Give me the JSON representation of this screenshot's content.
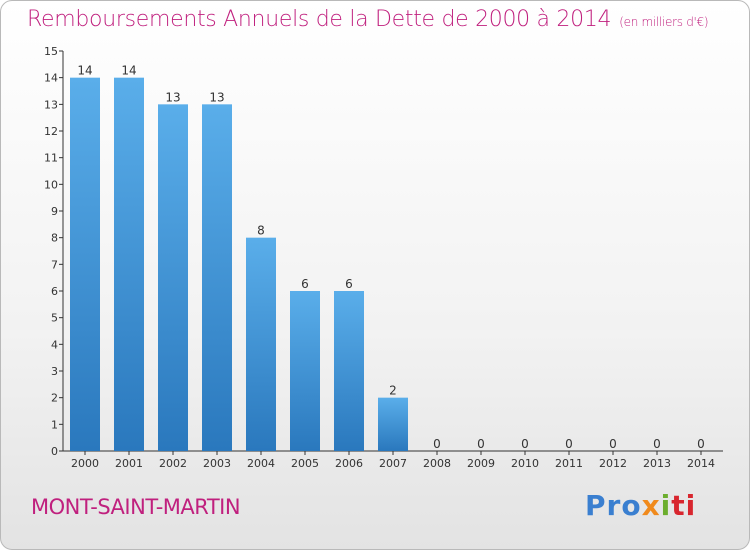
{
  "header": {
    "title": "Remboursements Annuels de la Dette de 2000 à 2014",
    "unit": "(en milliers d'€)"
  },
  "footer": {
    "commune": "MONT-SAINT-MARTIN",
    "logo": [
      "Pro",
      "x",
      "i",
      "ti"
    ]
  },
  "colors": {
    "accent": "#c0207e",
    "bar_light": "#5aaeea",
    "bar_dark": "#2a78bd"
  },
  "chart_data": {
    "type": "bar",
    "categories": [
      "2000",
      "2001",
      "2002",
      "2003",
      "2004",
      "2005",
      "2006",
      "2007",
      "2008",
      "2009",
      "2010",
      "2011",
      "2012",
      "2013",
      "2014"
    ],
    "values": [
      14,
      14,
      13,
      13,
      8,
      6,
      6,
      2,
      0,
      0,
      0,
      0,
      0,
      0,
      0
    ],
    "data_labels": [
      "14",
      "14",
      "13",
      "13",
      "8",
      "6",
      "6",
      "2",
      "0",
      "0",
      "0",
      "0",
      "0",
      "0",
      "0"
    ],
    "ylim": [
      0,
      15
    ],
    "yticks": [
      "0",
      "1",
      "2",
      "3",
      "4",
      "5",
      "6",
      "7",
      "8",
      "9",
      "10",
      "11",
      "12",
      "13",
      "14",
      "15"
    ],
    "grid": false,
    "title": "Remboursements Annuels de la Dette de 2000 à 2014",
    "xlabel": "",
    "ylabel": ""
  }
}
